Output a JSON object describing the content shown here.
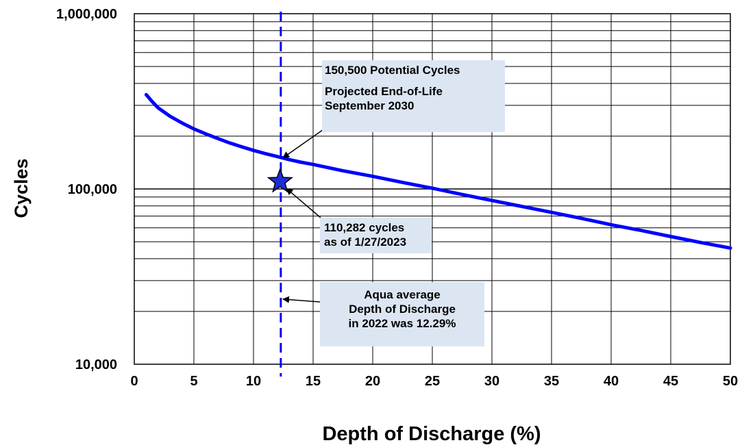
{
  "chart_data": {
    "type": "line",
    "title": "",
    "xlabel": "Depth of Discharge (%)",
    "ylabel": "Cycles",
    "xlim": [
      0,
      50
    ],
    "ylim": [
      10000,
      1000000
    ],
    "y_scale": "log",
    "grid": true,
    "x_ticks": [
      "0",
      "5",
      "10",
      "15",
      "20",
      "25",
      "30",
      "35",
      "40",
      "45",
      "50"
    ],
    "y_ticks": [
      "10,000",
      "100,000",
      "1,000,000"
    ],
    "series": [
      {
        "color": "#0000ff",
        "x": [
          1,
          1.5,
          2,
          3,
          4,
          5,
          6,
          7,
          8,
          9,
          10,
          11,
          12,
          13,
          14,
          15,
          17.5,
          20,
          22.5,
          25,
          27.5,
          30,
          32.5,
          35,
          37.5,
          40,
          42.5,
          45,
          47.5,
          50
        ],
        "y": [
          345000,
          315000,
          290000,
          260000,
          238000,
          220000,
          206000,
          194000,
          183000,
          174000,
          166000,
          159000,
          153000,
          147000,
          142000,
          138000,
          127000,
          118000,
          109000,
          101000,
          93000,
          86000,
          79500,
          73500,
          68000,
          62500,
          58000,
          53500,
          49500,
          46000
        ]
      }
    ],
    "reference_line": {
      "x": 12.29,
      "color": "#0000ff",
      "style": "dashed"
    },
    "marker": {
      "x": 12.29,
      "y": 110282,
      "shape": "star",
      "color": "#0000ff"
    },
    "annotations": [
      {
        "id": "projected",
        "lines": [
          "150,500 Potential Cycles",
          "",
          "Projected End-of-Life",
          "September 2030"
        ],
        "points_to": {
          "x": 12.3,
          "y": 150500
        }
      },
      {
        "id": "cycles-now",
        "lines": [
          "110,282 cycles",
          "as of 1/27/2023"
        ],
        "points_to": {
          "x": 12.6,
          "y": 100500
        }
      },
      {
        "id": "aqua-avg",
        "lines": [
          "Aqua average",
          "Depth of Discharge",
          "in 2022 was 12.29%"
        ],
        "points_to": {
          "x": 12.3,
          "y": 23500
        }
      }
    ]
  }
}
